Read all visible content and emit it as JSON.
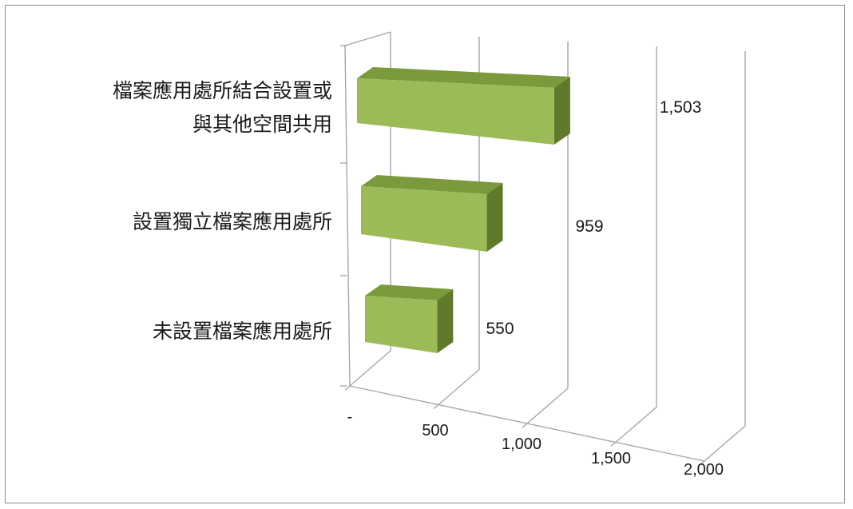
{
  "chart_data": {
    "type": "bar",
    "orientation": "horizontal",
    "style": "3d",
    "categories": [
      "檔案應用處所結合設置或與其他空間共用",
      "設置獨立檔案應用處所",
      "未設置檔案應用處所"
    ],
    "category_lines": [
      [
        "檔案應用處所結合設置或",
        "與其他空間共用"
      ],
      [
        "設置獨立檔案應用處所"
      ],
      [
        "未設置檔案應用處所"
      ]
    ],
    "values": [
      1503,
      959,
      550
    ],
    "value_labels": [
      "1,503",
      "959",
      "550"
    ],
    "xlim": [
      0,
      2000
    ],
    "x_ticks": [
      0,
      500,
      1000,
      1500,
      2000
    ],
    "x_tick_labels": [
      "-",
      "500",
      "1,000",
      "1,500",
      "2,000"
    ],
    "grid": true,
    "legend": "none",
    "colors": {
      "bar_front": "#9bbb59",
      "bar_top": "#7a9a3c",
      "bar_side": "#5f7a2b",
      "axis": "#a6a6a6",
      "text": "#1a1a1a"
    }
  }
}
